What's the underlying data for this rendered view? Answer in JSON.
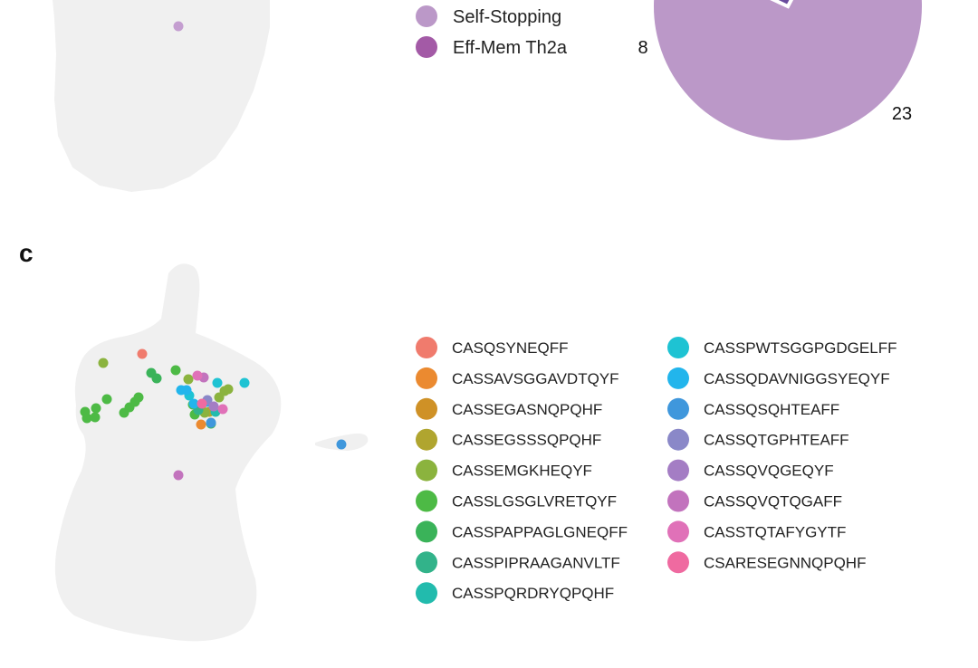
{
  "panel_c_label": "c",
  "chart_data": [
    {
      "type": "pie",
      "name": "top-panel-pie",
      "slices": [
        {
          "label": "Self-Stopping",
          "value": 23,
          "color": "#bb98c8"
        },
        {
          "label": "Eff-Mem Th2a",
          "value": 8,
          "color": "#6a4c9d"
        }
      ],
      "slice_labels": [
        "23",
        "8"
      ],
      "legend": [
        {
          "label": "Self-Stopping",
          "color": "#bb98c8"
        },
        {
          "label": "Eff-Mem Th2a",
          "color": "#a35aa6"
        }
      ],
      "top_umap_point": {
        "color": "#c49ed0"
      }
    },
    {
      "type": "scatter",
      "name": "panel-c-umap",
      "background_color": "#f0f0f0",
      "legend_placement": "right",
      "series": [
        {
          "name": "CASQSYNEQFF",
          "color": "#f07b6d",
          "points": [
            [
              157,
              391
            ]
          ]
        },
        {
          "name": "CASSAVSGGAVDTQYF",
          "color": "#eb8a30",
          "points": [
            [
              222,
              469
            ]
          ]
        },
        {
          "name": "CASSEGASNQPQHF",
          "color": "#cf9126",
          "points": [
            [
              222,
              450
            ]
          ]
        },
        {
          "name": "CASSEGSSSQPQHF",
          "color": "#b0a52f",
          "points": [
            [
              231,
              455
            ]
          ]
        },
        {
          "name": "CASSEMGKHEQYF",
          "color": "#8bb33e",
          "points": [
            [
              114,
              401
            ],
            [
              208,
              419
            ],
            [
              248,
              432
            ],
            [
              242,
              439
            ],
            [
              252,
              430
            ],
            [
              226,
              456
            ]
          ]
        },
        {
          "name": "CASSLGSGLVRETQYF",
          "color": "#4dba45",
          "points": [
            [
              94,
              455
            ],
            [
              96,
              462
            ],
            [
              105,
              461
            ],
            [
              106,
              451
            ],
            [
              118,
              441
            ],
            [
              137,
              456
            ],
            [
              143,
              450
            ],
            [
              149,
              444
            ],
            [
              153,
              439
            ],
            [
              194,
              409
            ],
            [
              213,
              447
            ],
            [
              215,
              458
            ]
          ]
        },
        {
          "name": "CASSPAPPAGLGNEQFF",
          "color": "#3ab359",
          "points": [
            [
              167,
              412
            ],
            [
              173,
              418
            ],
            [
              233,
              468
            ]
          ]
        },
        {
          "name": "CASSPIPRAAGANVLTF",
          "color": "#32b38a",
          "points": [
            [
              219,
              453
            ]
          ]
        },
        {
          "name": "CASSPQRDRYQPQHF",
          "color": "#22bbad",
          "points": [
            [
              238,
              455
            ]
          ]
        },
        {
          "name": "CASSPWTSGGPGDGELFF",
          "color": "#1ec3d3",
          "points": [
            [
              240,
              423
            ],
            [
              270,
              423
            ],
            [
              209,
              437
            ]
          ]
        },
        {
          "name": "CASSQDAVNIGGSYEQYF",
          "color": "#22b5ec",
          "points": [
            [
              200,
              431
            ],
            [
              206,
              431
            ],
            [
              214,
              446
            ],
            [
              228,
              444
            ]
          ]
        },
        {
          "name": "CASSQSQHTEAFF",
          "color": "#3f97dc",
          "points": [
            [
              377,
              491
            ],
            [
              233,
              467
            ]
          ]
        },
        {
          "name": "CASSQTGPHTEAFF",
          "color": "#8a88c8",
          "points": [
            [
              229,
              442
            ]
          ]
        },
        {
          "name": "CASSQVQGEQYF",
          "color": "#a47dc4",
          "points": [
            [
              236,
              449
            ]
          ]
        },
        {
          "name": "CASSQVQTQGAFF",
          "color": "#c273bd",
          "points": [
            [
              197,
              525
            ],
            [
              225,
              417
            ]
          ]
        },
        {
          "name": "CASSTQTAFYGYTF",
          "color": "#e071b8",
          "points": [
            [
              218,
              415
            ],
            [
              246,
              452
            ]
          ]
        },
        {
          "name": "CSARESEGNNQPQHF",
          "color": "#ef6aa0",
          "points": [
            [
              223,
              446
            ]
          ]
        }
      ]
    }
  ]
}
